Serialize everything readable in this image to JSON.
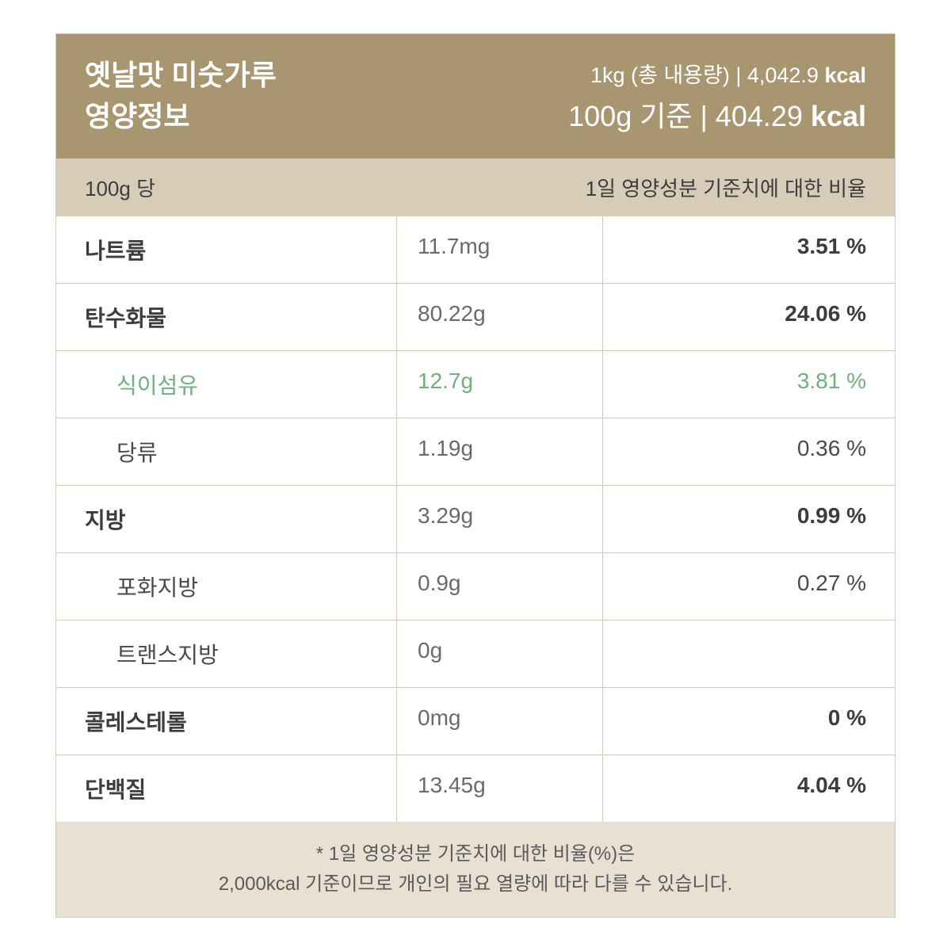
{
  "colors": {
    "header_bg": "#a89671",
    "header_text": "#ffffff",
    "subheader_bg": "#d7ccb8",
    "footer_bg": "#e8e1d3",
    "border": "#d4c8b8",
    "text_dark": "#3d3d3d",
    "text_medium": "#4a4a4a",
    "text_light": "#6a6a6a",
    "highlight": "#6fb07f",
    "card_bg": "#ffffff"
  },
  "header": {
    "title_line1": "옛날맛 미숫가루",
    "title_line2": "영양정보",
    "small_prefix": "1kg (총 내용량) | 4,042.9 ",
    "small_bold": "kcal",
    "large_prefix": "100g 기준 | 404.29 ",
    "large_bold": "kcal"
  },
  "subheader": {
    "left": "100g 당",
    "right": "1일 영양성분 기준치에 대한 비율"
  },
  "rows": [
    {
      "name": "나트륨",
      "value": "11.7mg",
      "percent": "3.51 %",
      "major": true,
      "indent": false,
      "highlighted": false
    },
    {
      "name": "탄수화물",
      "value": "80.22g",
      "percent": "24.06 %",
      "major": true,
      "indent": false,
      "highlighted": false
    },
    {
      "name": "식이섬유",
      "value": "12.7g",
      "percent": "3.81 %",
      "major": false,
      "indent": true,
      "highlighted": true
    },
    {
      "name": "당류",
      "value": "1.19g",
      "percent": "0.36 %",
      "major": false,
      "indent": true,
      "highlighted": false
    },
    {
      "name": "지방",
      "value": "3.29g",
      "percent": "0.99 %",
      "major": true,
      "indent": false,
      "highlighted": false
    },
    {
      "name": "포화지방",
      "value": "0.9g",
      "percent": "0.27 %",
      "major": false,
      "indent": true,
      "highlighted": false
    },
    {
      "name": "트랜스지방",
      "value": "0g",
      "percent": "",
      "major": false,
      "indent": true,
      "highlighted": false
    },
    {
      "name": "콜레스테롤",
      "value": "0mg",
      "percent": "0 %",
      "major": true,
      "indent": false,
      "highlighted": false
    },
    {
      "name": "단백질",
      "value": "13.45g",
      "percent": "4.04 %",
      "major": true,
      "indent": false,
      "highlighted": false
    }
  ],
  "footer": {
    "line1": "* 1일 영양성분 기준치에 대한 비율(%)은",
    "line2": "2,000kcal 기준이므로 개인의 필요 열량에 따라 다를 수 있습니다."
  }
}
